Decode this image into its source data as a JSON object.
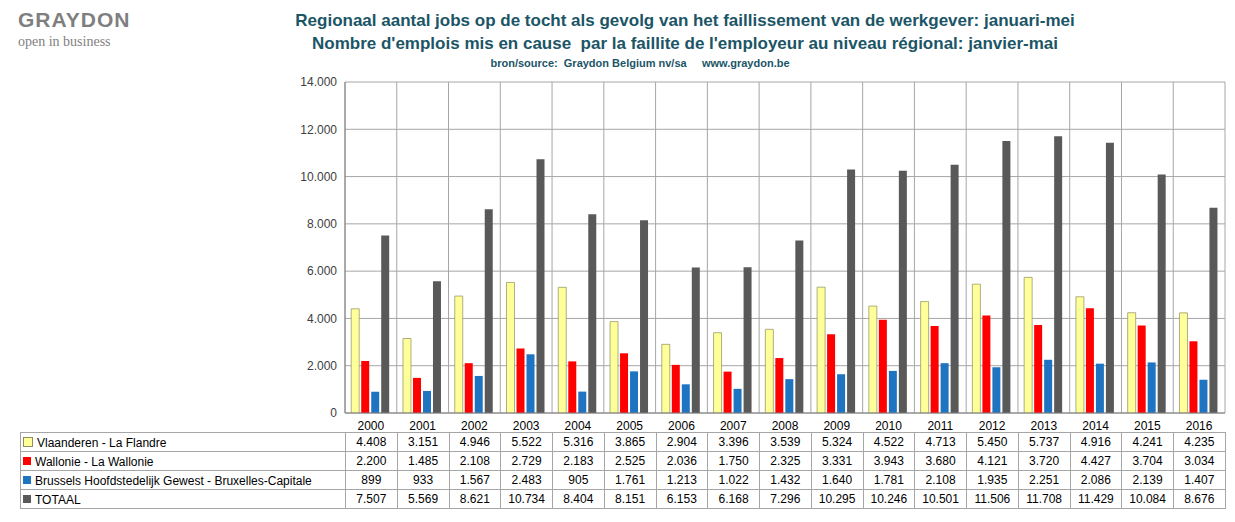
{
  "chart_data": {
    "type": "bar",
    "title": "Regionaal aantal jobs op de tocht als gevolg van het faillissement van de werkgever: januari-mei",
    "subtitle": "Nombre d'emplois mis en cause  par la faillite de l'employeur au niveau régional: janvier-mai",
    "source": "bron/source:  Graydon Belgium nv/sa     www.graydon.be",
    "annotations": [
      "GRAYDON",
      "open in business"
    ],
    "categories": [
      "2000",
      "2001",
      "2002",
      "2003",
      "2004",
      "2005",
      "2006",
      "2007",
      "2008",
      "2009",
      "2010",
      "2011",
      "2012",
      "2013",
      "2014",
      "2015",
      "2016"
    ],
    "series": [
      {
        "name": "Vlaanderen - La Flandre",
        "color": "#FFFF99",
        "values": [
          4408,
          3151,
          4946,
          5522,
          5316,
          3865,
          2904,
          3396,
          3539,
          5324,
          4522,
          4713,
          5450,
          5737,
          4916,
          4241,
          4235
        ],
        "value_labels": [
          "4.408",
          "3.151",
          "4.946",
          "5.522",
          "5.316",
          "3.865",
          "2.904",
          "3.396",
          "3.539",
          "5.324",
          "4.522",
          "4.713",
          "5.450",
          "5.737",
          "4.916",
          "4.241",
          "4.235"
        ]
      },
      {
        "name": "Wallonie - La Wallonie",
        "color": "#FF0000",
        "values": [
          2200,
          1485,
          2108,
          2729,
          2183,
          2525,
          2036,
          1750,
          2325,
          3331,
          3943,
          3680,
          4121,
          3720,
          4427,
          3704,
          3034
        ],
        "value_labels": [
          "2.200",
          "1.485",
          "2.108",
          "2.729",
          "2.183",
          "2.525",
          "2.036",
          "1.750",
          "2.325",
          "3.331",
          "3.943",
          "3.680",
          "4.121",
          "3.720",
          "4.427",
          "3.704",
          "3.034"
        ]
      },
      {
        "name": "Brussels Hoofdstedelijk Gewest - Bruxelles-Capitale",
        "color": "#1F74C2",
        "values": [
          899,
          933,
          1567,
          2483,
          905,
          1761,
          1213,
          1022,
          1432,
          1640,
          1781,
          2108,
          1935,
          2251,
          2086,
          2139,
          1407
        ],
        "value_labels": [
          "899",
          "933",
          "1.567",
          "2.483",
          "905",
          "1.761",
          "1.213",
          "1.022",
          "1.432",
          "1.640",
          "1.781",
          "2.108",
          "1.935",
          "2.251",
          "2.086",
          "2.139",
          "1.407"
        ]
      },
      {
        "name": "TOTAAL",
        "color": "#595959",
        "values": [
          7507,
          5569,
          8621,
          10734,
          8404,
          8151,
          6153,
          6168,
          7296,
          10295,
          10246,
          10501,
          11506,
          11708,
          11429,
          10084,
          8676
        ],
        "value_labels": [
          "7.507",
          "5.569",
          "8.621",
          "10.734",
          "8.404",
          "8.151",
          "6.153",
          "6.168",
          "7.296",
          "10.295",
          "10.246",
          "10.501",
          "11.506",
          "11.708",
          "11.429",
          "10.084",
          "8.676"
        ]
      }
    ],
    "ylim": [
      0,
      14000
    ],
    "yticks": [
      0,
      {
        "value": 2000,
        "label": "2.000"
      },
      {
        "value": 4000,
        "label": "4.000"
      },
      {
        "value": 6000,
        "label": "6.000"
      },
      {
        "value": 8000,
        "label": "8.000"
      },
      {
        "value": 10000,
        "label": "10.000"
      },
      {
        "value": 12000,
        "label": "12.000"
      },
      {
        "value": 14000,
        "label": "14.000"
      }
    ],
    "grid": true
  }
}
